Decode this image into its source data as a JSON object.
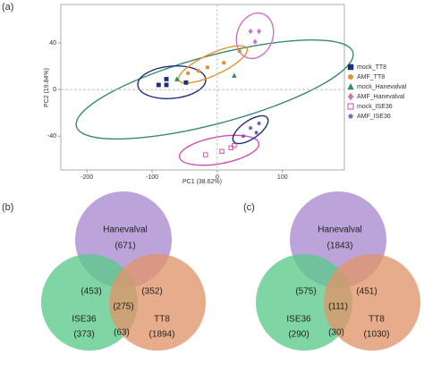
{
  "chart_data": [
    {
      "type": "scatter",
      "panel_label": "(a)",
      "x_label": "PC1 (38.62%)",
      "y_label": "PC2 (19.84%)",
      "xlim": [
        -240,
        195
      ],
      "ylim": [
        -69,
        73
      ],
      "xticks": [
        -200,
        -100,
        0,
        100
      ],
      "yticks": [
        -40,
        0,
        40
      ],
      "series": [
        {
          "name": "mock_TT8",
          "color": "#1f2f7a",
          "marker": "square",
          "x": [
            -78,
            -78,
            -48,
            -90
          ],
          "y": [
            9,
            4,
            6,
            4
          ]
        },
        {
          "name": "AMF_TT8",
          "color": "#e89030",
          "marker": "circle",
          "x": [
            -15,
            10,
            34,
            -45,
            -29
          ],
          "y": [
            19,
            23,
            33,
            14,
            16
          ]
        },
        {
          "name": "mock_Hanevalval",
          "color": "#3a8a6a",
          "marker": "triangle",
          "x": [
            -62,
            26
          ],
          "y": [
            9,
            12
          ]
        },
        {
          "name": "AMF_Hanevalval",
          "color": "#d070d0",
          "marker": "diamond",
          "x": [
            51,
            64,
            58
          ],
          "y": [
            50,
            50,
            41
          ]
        },
        {
          "name": "mock_ISE36",
          "color": "#d050b0",
          "marker": "open-square",
          "x": [
            -18,
            7,
            21,
            26
          ],
          "y": [
            -56,
            -53,
            -50,
            -48
          ]
        },
        {
          "name": "AMF_ISE36",
          "color": "#6a5ab0",
          "marker": "asterisk",
          "x": [
            40,
            51,
            64,
            60
          ],
          "y": [
            -40,
            -33,
            -29,
            -37
          ]
        }
      ]
    },
    {
      "type": "venn",
      "panel_label": "(b)",
      "sets": [
        "Hanevalval",
        "ISE36",
        "TT8"
      ],
      "values": [
        671,
        373,
        1894,
        453,
        352,
        63,
        275
      ],
      "value_labels": [
        "(671)",
        "(373)",
        "(1894)",
        "(453)",
        "(352)",
        "(63)",
        "(275)"
      ]
    },
    {
      "type": "venn",
      "panel_label": "(c)",
      "sets": [
        "Hanevalval",
        "ISE36",
        "TT8"
      ],
      "values": [
        1843,
        290,
        1030,
        575,
        451,
        30,
        111
      ],
      "value_labels": [
        "(1843)",
        "(290)",
        "(1030)",
        "(575)",
        "(451)",
        "(30)",
        "(111)"
      ]
    }
  ]
}
